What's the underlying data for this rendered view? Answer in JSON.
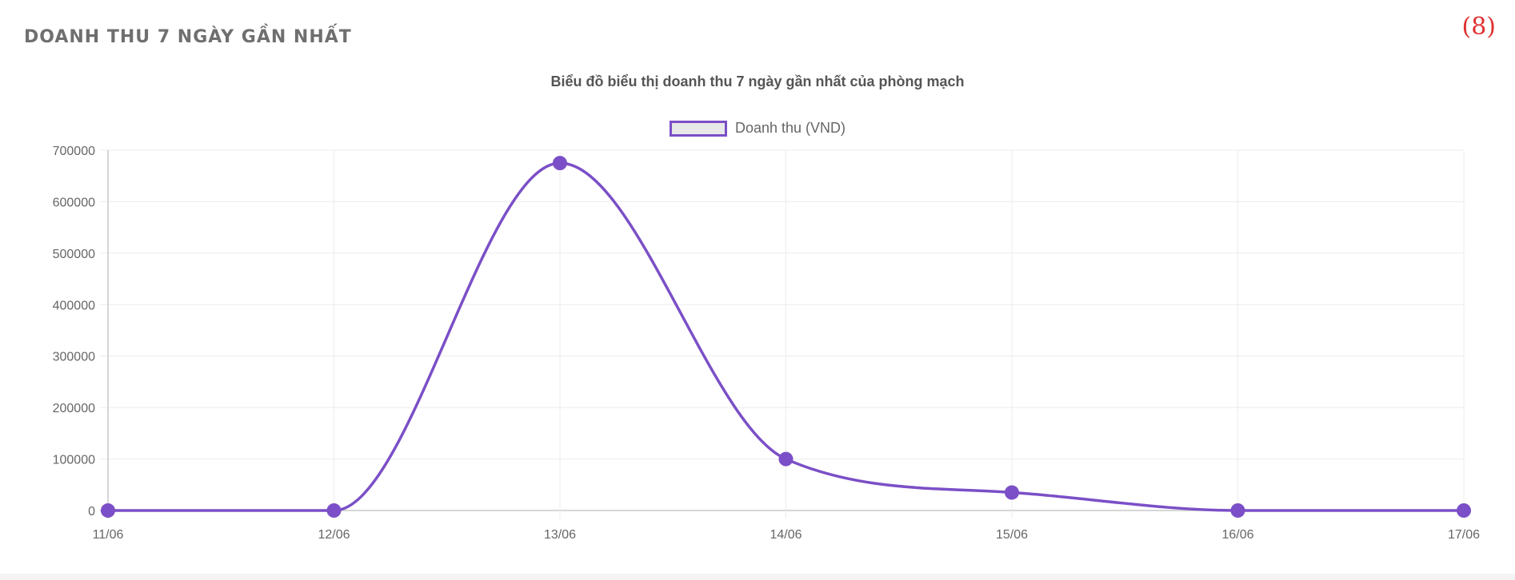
{
  "panel": {
    "title": "DOANH THU 7 NGÀY GẦN NHẤT",
    "number": "(8)"
  },
  "chart_data": {
    "type": "line",
    "title": "Biểu đồ biểu thị doanh thu 7 ngày gần nhất của phòng mạch",
    "categories": [
      "11/06",
      "12/06",
      "13/06",
      "14/06",
      "15/06",
      "16/06",
      "17/06"
    ],
    "series": [
      {
        "name": "Doanh thu (VND)",
        "values": [
          0,
          0,
          675000,
          100000,
          35000,
          0,
          0
        ],
        "color": "#7b4fc7",
        "legend_fill": "#e8e8e8"
      }
    ],
    "y_ticks": [
      "700000",
      "600000",
      "500000",
      "400000",
      "300000",
      "200000",
      "100000",
      "0"
    ],
    "ylim": [
      0,
      700000
    ],
    "xlabel": "",
    "ylabel": "",
    "grid": true,
    "legend": "top-center",
    "curve": "smooth"
  }
}
